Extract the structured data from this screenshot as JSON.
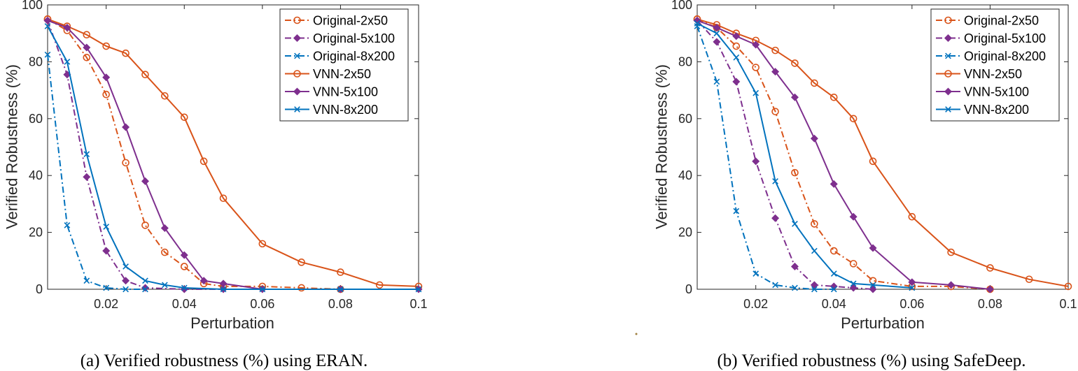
{
  "colors": {
    "orange": "#d95319",
    "purple": "#7e2f8e",
    "blue": "#0072bd",
    "axis": "#262626",
    "legend_border": "#262626"
  },
  "chart_data": [
    {
      "type": "line",
      "caption": "(a) Verified robustness (%) using ERAN.",
      "xlabel": "Perturbation",
      "ylabel": "Verified Robustness (%)",
      "xlim": [
        0.005,
        0.1
      ],
      "ylim": [
        0,
        100
      ],
      "xticks": [
        0.02,
        0.04,
        0.06,
        0.08,
        0.1
      ],
      "xtick_labels": [
        "0.02",
        "0.04",
        "0.06",
        "0.08",
        "0.1"
      ],
      "yticks": [
        0,
        20,
        40,
        60,
        80,
        100
      ],
      "ytick_labels": [
        "0",
        "20",
        "40",
        "60",
        "80",
        "100"
      ],
      "legend_position": "top-right",
      "series": [
        {
          "name": "Original-2x50",
          "color": "orange",
          "dash": "dashdot",
          "marker": "circle",
          "x": [
            0.005,
            0.01,
            0.015,
            0.02,
            0.025,
            0.03,
            0.035,
            0.04,
            0.045,
            0.05,
            0.06,
            0.07,
            0.08
          ],
          "y": [
            95,
            91,
            81.5,
            68.5,
            44.5,
            22.5,
            13,
            8,
            2,
            1,
            1,
            0.5,
            0
          ]
        },
        {
          "name": "Original-5x100",
          "color": "purple",
          "dash": "dashdot",
          "marker": "diamond",
          "x": [
            0.005,
            0.01,
            0.015,
            0.02,
            0.025,
            0.03,
            0.04,
            0.05
          ],
          "y": [
            94.5,
            75.5,
            39.5,
            13.5,
            3,
            0.5,
            0,
            0
          ]
        },
        {
          "name": "Original-8x200",
          "color": "blue",
          "dash": "dashdot",
          "marker": "x",
          "x": [
            0.005,
            0.01,
            0.015,
            0.02,
            0.025,
            0.03
          ],
          "y": [
            82.5,
            22.5,
            3,
            0.5,
            0,
            0
          ]
        },
        {
          "name": "VNN-2x50",
          "color": "orange",
          "dash": "solid",
          "marker": "circle",
          "x": [
            0.005,
            0.01,
            0.015,
            0.02,
            0.025,
            0.03,
            0.035,
            0.04,
            0.045,
            0.05,
            0.06,
            0.07,
            0.08,
            0.09,
            0.1
          ],
          "y": [
            95,
            92.5,
            89.5,
            85.5,
            83,
            75.5,
            68,
            60.5,
            45,
            32,
            16,
            9.5,
            6,
            1.5,
            1
          ]
        },
        {
          "name": "VNN-5x100",
          "color": "purple",
          "dash": "solid",
          "marker": "diamond",
          "x": [
            0.005,
            0.01,
            0.015,
            0.02,
            0.025,
            0.03,
            0.035,
            0.04,
            0.045,
            0.05,
            0.06,
            0.08,
            0.1
          ],
          "y": [
            94.5,
            92,
            85,
            74.5,
            57,
            38,
            21.5,
            12,
            3,
            2,
            0,
            0,
            0
          ]
        },
        {
          "name": "VNN-8x200",
          "color": "blue",
          "dash": "solid",
          "marker": "x",
          "x": [
            0.005,
            0.01,
            0.015,
            0.02,
            0.025,
            0.03,
            0.035,
            0.04,
            0.05,
            0.06,
            0.08,
            0.1
          ],
          "y": [
            92.5,
            80,
            47.5,
            22,
            8,
            3,
            1.5,
            0.5,
            0,
            0,
            0,
            0
          ]
        }
      ]
    },
    {
      "type": "line",
      "caption": "(b) Verified robustness (%) using SafeDeep.",
      "xlabel": "Perturbation",
      "ylabel": "Verified Robustness (%)",
      "xlim": [
        0.005,
        0.1
      ],
      "ylim": [
        0,
        100
      ],
      "xticks": [
        0.02,
        0.04,
        0.06,
        0.08,
        0.1
      ],
      "xtick_labels": [
        "0.02",
        "0.04",
        "0.06",
        "0.08",
        "0.1"
      ],
      "yticks": [
        0,
        20,
        40,
        60,
        80,
        100
      ],
      "ytick_labels": [
        "0",
        "20",
        "40",
        "60",
        "80",
        "100"
      ],
      "legend_position": "top-right",
      "series": [
        {
          "name": "Original-2x50",
          "color": "orange",
          "dash": "dashdot",
          "marker": "circle",
          "x": [
            0.005,
            0.01,
            0.015,
            0.02,
            0.025,
            0.03,
            0.035,
            0.04,
            0.045,
            0.05,
            0.06,
            0.07,
            0.08
          ],
          "y": [
            95,
            92,
            85.5,
            78,
            62.5,
            41,
            23,
            13.5,
            9,
            3,
            1,
            1,
            0
          ]
        },
        {
          "name": "Original-5x100",
          "color": "purple",
          "dash": "dashdot",
          "marker": "diamond",
          "x": [
            0.005,
            0.01,
            0.015,
            0.02,
            0.025,
            0.03,
            0.035,
            0.04,
            0.045,
            0.05
          ],
          "y": [
            94.5,
            87,
            73,
            45,
            25,
            8,
            1.5,
            1,
            0.5,
            0
          ]
        },
        {
          "name": "Original-8x200",
          "color": "blue",
          "dash": "dashdot",
          "marker": "x",
          "x": [
            0.005,
            0.01,
            0.015,
            0.02,
            0.025,
            0.03,
            0.035,
            0.04
          ],
          "y": [
            92.5,
            73,
            27.5,
            5.5,
            1.5,
            0.5,
            0,
            0
          ]
        },
        {
          "name": "VNN-2x50",
          "color": "orange",
          "dash": "solid",
          "marker": "circle",
          "x": [
            0.005,
            0.01,
            0.015,
            0.02,
            0.025,
            0.03,
            0.035,
            0.04,
            0.045,
            0.05,
            0.06,
            0.07,
            0.08,
            0.09,
            0.1
          ],
          "y": [
            95,
            93,
            90,
            87.5,
            84,
            79.5,
            72.5,
            67.5,
            60,
            45,
            25.5,
            13,
            7.5,
            3.5,
            1
          ]
        },
        {
          "name": "VNN-5x100",
          "color": "purple",
          "dash": "solid",
          "marker": "diamond",
          "x": [
            0.005,
            0.01,
            0.015,
            0.02,
            0.025,
            0.03,
            0.035,
            0.04,
            0.045,
            0.05,
            0.06,
            0.07,
            0.08
          ],
          "y": [
            94.5,
            92,
            89,
            86,
            76.5,
            67.5,
            53,
            37,
            25.5,
            14.5,
            2.5,
            1.5,
            0
          ]
        },
        {
          "name": "VNN-8x200",
          "color": "blue",
          "dash": "solid",
          "marker": "x",
          "x": [
            0.005,
            0.01,
            0.015,
            0.02,
            0.025,
            0.03,
            0.035,
            0.04,
            0.045,
            0.05,
            0.06
          ],
          "y": [
            93.5,
            90,
            81.5,
            69,
            38,
            23,
            13.5,
            5.5,
            2,
            1.5,
            0.5
          ]
        }
      ]
    }
  ]
}
